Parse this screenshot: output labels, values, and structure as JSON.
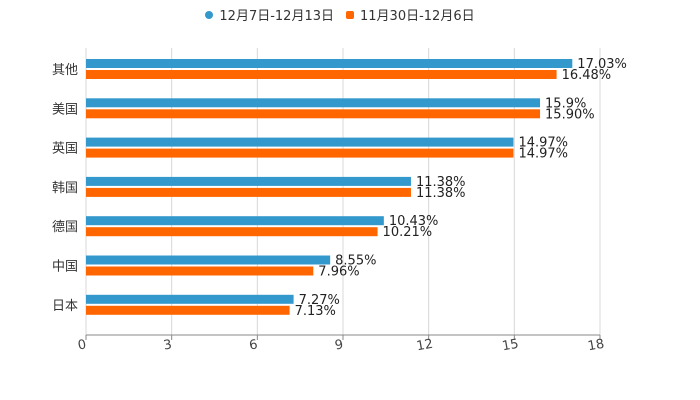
{
  "chart_data": {
    "type": "bar",
    "orientation": "horizontal",
    "categories": [
      "其他",
      "美国",
      "英国",
      "韩国",
      "德国",
      "中国",
      "日本"
    ],
    "series": [
      {
        "name": "12月7日-12月13日",
        "color": "#3399cc",
        "values": [
          17.03,
          15.9,
          14.97,
          11.38,
          10.43,
          8.55,
          7.27
        ],
        "labels": [
          "17.03%",
          "15.9%",
          "14.97%",
          "11.38%",
          "10.43%",
          "8.55%",
          "7.27%"
        ]
      },
      {
        "name": "11月30日-12月6日",
        "color": "#ff6600",
        "values": [
          16.48,
          15.9,
          14.97,
          11.38,
          10.21,
          7.96,
          7.13
        ],
        "labels": [
          "16.48%",
          "15.90%",
          "14.97%",
          "11.38%",
          "10.21%",
          "7.96%",
          "7.13%"
        ]
      }
    ],
    "xlim": [
      0,
      18
    ],
    "xticks": [
      "0",
      "3",
      "6",
      "9",
      "12",
      "15",
      "18"
    ],
    "grid": true,
    "legend_position": "top-center"
  }
}
